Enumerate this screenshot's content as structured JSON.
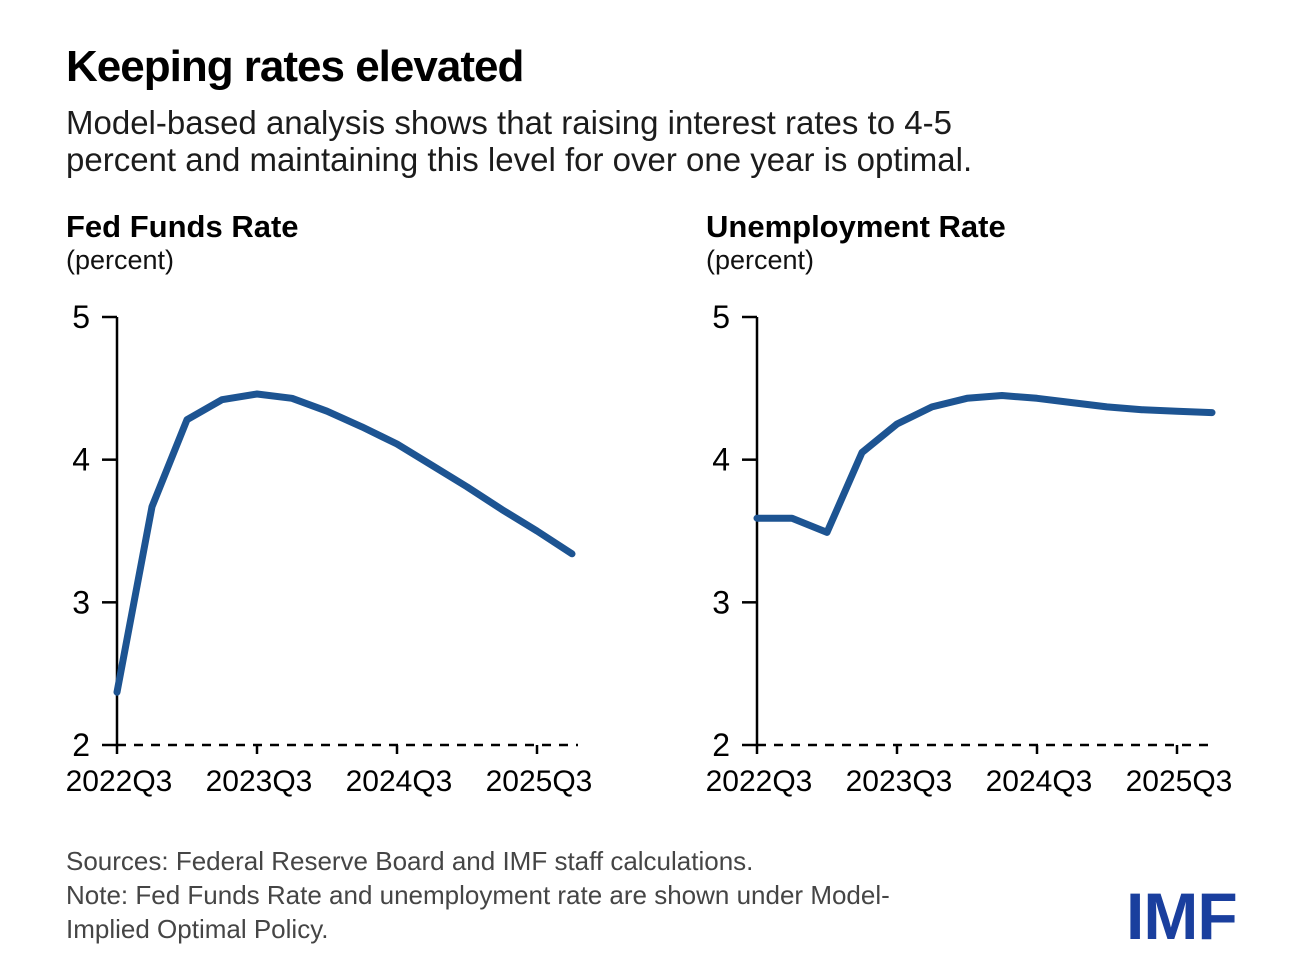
{
  "title": "Keeping rates elevated",
  "subtitle_line1": "Model-based analysis shows that raising interest rates to 4-5",
  "subtitle_line2": "percent and maintaining this level for over one year is optimal.",
  "footer": {
    "sources": "Sources: Federal Reserve Board and IMF staff calculations.",
    "note_line1": "Note: Fed Funds Rate and unemployment rate are shown under Model-",
    "note_line2": "Implied Optimal Policy."
  },
  "logo": "IMF",
  "colors": {
    "line": "#1d5492",
    "axis": "#000000",
    "tick_label": "#000000",
    "footer_text": "#454545",
    "logo_blue": "#1a3f9e"
  },
  "chart_data": [
    {
      "type": "line",
      "title": "Fed Funds Rate",
      "subtitle": "(percent)",
      "x": [
        "2022Q3",
        "2022Q4",
        "2023Q1",
        "2023Q2",
        "2023Q3",
        "2023Q4",
        "2024Q1",
        "2024Q2",
        "2024Q3",
        "2024Q4",
        "2025Q1",
        "2025Q2",
        "2025Q3",
        "2025Q4"
      ],
      "values": [
        2.37,
        3.67,
        4.28,
        4.42,
        4.46,
        4.43,
        4.34,
        4.23,
        4.11,
        3.96,
        3.81,
        3.65,
        3.5,
        3.34
      ],
      "ylim": [
        2,
        5
      ],
      "yticks": [
        5,
        4,
        3,
        2
      ],
      "xtick_labels": [
        "2022Q3",
        "2023Q3",
        "2024Q3",
        "2025Q3"
      ],
      "xtick_indices": [
        0,
        4,
        8,
        12
      ],
      "grid": false,
      "legend": "none",
      "baseline_style": "dashed"
    },
    {
      "type": "line",
      "title": "Unemployment Rate",
      "subtitle": "(percent)",
      "x": [
        "2022Q3",
        "2022Q4",
        "2023Q1",
        "2023Q2",
        "2023Q3",
        "2023Q4",
        "2024Q1",
        "2024Q2",
        "2024Q3",
        "2024Q4",
        "2025Q1",
        "2025Q2",
        "2025Q3",
        "2025Q4"
      ],
      "values": [
        3.59,
        3.59,
        3.49,
        4.05,
        4.25,
        4.37,
        4.43,
        4.45,
        4.43,
        4.4,
        4.37,
        4.35,
        4.34,
        4.33
      ],
      "ylim": [
        2,
        5
      ],
      "yticks": [
        5,
        4,
        3,
        2
      ],
      "xtick_labels": [
        "2022Q3",
        "2023Q3",
        "2024Q3",
        "2025Q3"
      ],
      "xtick_indices": [
        0,
        4,
        8,
        12
      ],
      "grid": false,
      "legend": "none",
      "baseline_style": "dashed"
    }
  ]
}
